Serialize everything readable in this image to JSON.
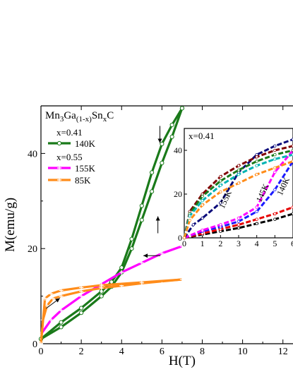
{
  "chart_data": {
    "type": "line",
    "xlabel": "H(T)",
    "ylabel": "M(emu/g)",
    "xlim": [
      0,
      12.5
    ],
    "ylim": [
      0,
      50
    ],
    "x_ticks": [
      0,
      2,
      4,
      6,
      8,
      10,
      12
    ],
    "y_ticks": [
      0,
      20,
      40
    ],
    "legend": {
      "title": "Mn3Ga(1-x)SnxC",
      "title_parts": {
        "a": "Mn",
        "b": "3",
        "c": "Ga",
        "d": "(1-x)",
        "e": "Sn",
        "f": "x",
        "g": "C"
      },
      "group1": "x=0.41",
      "group2": "x=0.55",
      "placement": "top-left"
    },
    "series": [
      {
        "name": "140K",
        "color": "#1a7a1a",
        "x": [
          0,
          1,
          2,
          3,
          3.5,
          4,
          4.5,
          5,
          5.5,
          6,
          6.5,
          7
        ],
        "y": [
          1,
          3.5,
          6.5,
          10,
          12,
          15,
          20,
          26,
          32,
          38,
          43.5,
          49.5
        ],
        "x_down": [
          7,
          6.5,
          6,
          5.5,
          5,
          4.5,
          4,
          3.5,
          3,
          2,
          1,
          0
        ],
        "y_down": [
          49.5,
          46,
          42,
          36,
          29,
          22,
          16,
          13,
          11,
          7.5,
          4.5,
          1
        ]
      },
      {
        "name": "155K",
        "color": "#ff00ff",
        "x": [
          0,
          0.5,
          1,
          2,
          3,
          4,
          5,
          6,
          7
        ],
        "y": [
          2,
          5,
          7,
          10,
          12.5,
          15,
          17,
          19,
          20.5
        ]
      },
      {
        "name": "85K",
        "color": "#ff8c1a",
        "x": [
          0,
          0.1,
          0.3,
          0.6,
          1,
          2,
          3,
          4,
          5,
          6,
          7
        ],
        "y": [
          0,
          5,
          8,
          9.5,
          10,
          11,
          11.7,
          12.2,
          12.7,
          13.1,
          13.5
        ],
        "x_down": [
          7,
          5,
          3,
          2,
          1,
          0.5,
          0.2,
          0
        ],
        "y_down": [
          13.5,
          12.9,
          12.3,
          11.8,
          11.2,
          10.5,
          9.5,
          0
        ]
      }
    ],
    "arrows": [
      {
        "x": 5.9,
        "y": 44,
        "dir": "down"
      },
      {
        "x": 5.8,
        "y": 25,
        "dir": "up"
      },
      {
        "x": 5.5,
        "y": 18.5,
        "dir": "left"
      },
      {
        "x": 0.6,
        "y": 8.5,
        "dir": "up-right"
      }
    ],
    "inset": {
      "label": "x=0.41",
      "xlim": [
        0,
        6
      ],
      "ylim": [
        0,
        50
      ],
      "x_ticks": [
        0,
        1,
        2,
        3,
        4,
        5,
        6
      ],
      "y_ticks": [
        0,
        20,
        40
      ],
      "curve_labels": [
        "155K",
        "145K",
        "140K"
      ],
      "series": [
        {
          "color": "#000000",
          "x": [
            0,
            1,
            2,
            3,
            4,
            5,
            6
          ],
          "y": [
            0,
            1.5,
            3,
            4.5,
            6.5,
            8.5,
            11
          ]
        },
        {
          "color": "#e60000",
          "x": [
            0,
            1,
            2,
            3,
            4,
            5,
            6
          ],
          "y": [
            0,
            2,
            4,
            6,
            8.5,
            11,
            14
          ]
        },
        {
          "color": "#1a1aff",
          "x": [
            0,
            1,
            2,
            3,
            4,
            5,
            6
          ],
          "y": [
            0,
            3,
            5,
            7.5,
            12,
            22,
            35
          ]
        },
        {
          "color": "#ff00ff",
          "x": [
            0,
            1,
            2,
            3,
            4,
            5,
            6
          ],
          "y": [
            0,
            3.5,
            6,
            9,
            14,
            30,
            40
          ]
        },
        {
          "color": "#0a0a7a",
          "x": [
            0,
            0.5,
            1,
            2,
            3,
            4,
            5,
            6
          ],
          "y": [
            0,
            6,
            9,
            16,
            30,
            38,
            42,
            45
          ]
        },
        {
          "color": "#800000",
          "x": [
            0,
            0.3,
            1,
            2,
            3,
            4,
            5,
            6
          ],
          "y": [
            0,
            12,
            20,
            28,
            33,
            37,
            40,
            42
          ]
        },
        {
          "color": "#1a7a1a",
          "x": [
            0,
            0.3,
            1,
            2,
            3,
            4,
            5,
            6
          ],
          "y": [
            0,
            11,
            19,
            26,
            31,
            35,
            38,
            40
          ]
        },
        {
          "color": "#00b3b3",
          "x": [
            0,
            0.3,
            1,
            2,
            3,
            4,
            5,
            6
          ],
          "y": [
            0,
            10,
            17,
            24,
            29,
            33,
            36,
            38
          ]
        },
        {
          "color": "#ff8c1a",
          "x": [
            0,
            0.3,
            1,
            2,
            3,
            4,
            5,
            6
          ],
          "y": [
            0,
            8,
            15,
            21,
            25,
            29,
            32,
            35
          ]
        }
      ]
    }
  }
}
